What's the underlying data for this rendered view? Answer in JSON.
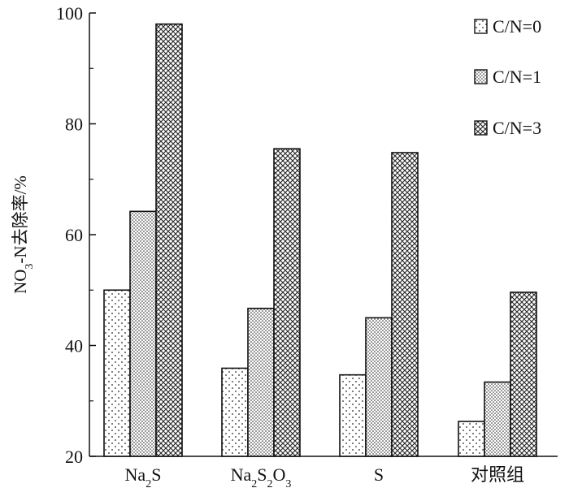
{
  "chart_data": {
    "type": "bar",
    "categories": [
      "Na2S",
      "Na2S2O3",
      "S",
      "对照组"
    ],
    "category_display": [
      {
        "parts": [
          {
            "t": "Na"
          },
          {
            "t": "2",
            "sub": true
          },
          {
            "t": "S"
          }
        ]
      },
      {
        "parts": [
          {
            "t": "Na"
          },
          {
            "t": "2",
            "sub": true
          },
          {
            "t": "S"
          },
          {
            "t": "2",
            "sub": true
          },
          {
            "t": "O"
          },
          {
            "t": "3",
            "sub": true
          }
        ]
      },
      {
        "parts": [
          {
            "t": "S"
          }
        ]
      },
      {
        "parts": [
          {
            "t": "对照组"
          }
        ]
      }
    ],
    "series": [
      {
        "name": "C/N=0",
        "pattern": "sparse-dots",
        "values": [
          50.0,
          35.9,
          34.7,
          26.3
        ]
      },
      {
        "name": "C/N=1",
        "pattern": "dense-dots",
        "values": [
          64.2,
          46.7,
          45.0,
          33.4
        ]
      },
      {
        "name": "C/N=3",
        "pattern": "crosshatch",
        "values": [
          98.0,
          75.5,
          74.8,
          49.6
        ]
      }
    ],
    "ylabel_parts": [
      {
        "t": "NO"
      },
      {
        "t": "3",
        "sub": true
      },
      {
        "t": "-N去除率/%"
      }
    ],
    "ylim": [
      20,
      100
    ],
    "yticks": [
      "20",
      "40",
      "60",
      "80",
      "100"
    ],
    "grid": false,
    "legend_position": "top-right",
    "colors": {
      "stroke": "#111111",
      "dot": "#222222",
      "background": "#ffffff"
    }
  }
}
